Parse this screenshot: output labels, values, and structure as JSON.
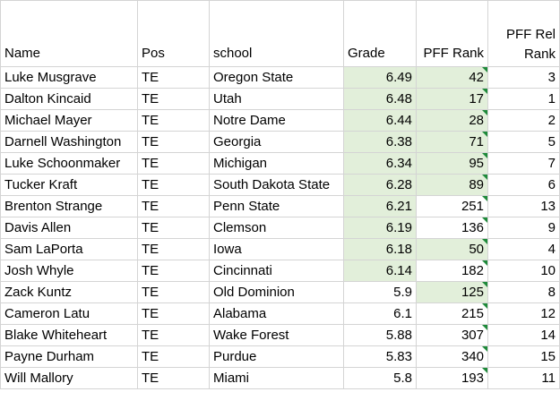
{
  "headers": {
    "name": "Name",
    "pos": "Pos",
    "school": "school",
    "grade": "Grade",
    "pff_rank": "PFF Rank",
    "pff_rel_rank_line1": "PFF Rel",
    "pff_rel_rank_line2": "Rank"
  },
  "rows": [
    {
      "name": "Luke Musgrave",
      "pos": "TE",
      "school": "Oregon State",
      "grade": "6.49",
      "pff_rank": "42",
      "rel_rank": "3"
    },
    {
      "name": "Dalton Kincaid",
      "pos": "TE",
      "school": "Utah",
      "grade": "6.48",
      "pff_rank": "17",
      "rel_rank": "1"
    },
    {
      "name": "Michael Mayer",
      "pos": "TE",
      "school": "Notre Dame",
      "grade": "6.44",
      "pff_rank": "28",
      "rel_rank": "2"
    },
    {
      "name": "Darnell Washington",
      "pos": "TE",
      "school": "Georgia",
      "grade": "6.38",
      "pff_rank": "71",
      "rel_rank": "5"
    },
    {
      "name": "Luke Schoonmaker",
      "pos": "TE",
      "school": "Michigan",
      "grade": "6.34",
      "pff_rank": "95",
      "rel_rank": "7"
    },
    {
      "name": "Tucker Kraft",
      "pos": "TE",
      "school": "South Dakota State",
      "grade": "6.28",
      "pff_rank": "89",
      "rel_rank": "6"
    },
    {
      "name": "Brenton Strange",
      "pos": "TE",
      "school": "Penn State",
      "grade": "6.21",
      "pff_rank": "251",
      "rel_rank": "13"
    },
    {
      "name": "Davis Allen",
      "pos": "TE",
      "school": "Clemson",
      "grade": "6.19",
      "pff_rank": "136",
      "rel_rank": "9"
    },
    {
      "name": "Sam LaPorta",
      "pos": "TE",
      "school": "Iowa",
      "grade": "6.18",
      "pff_rank": "50",
      "rel_rank": "4"
    },
    {
      "name": "Josh Whyle",
      "pos": "TE",
      "school": "Cincinnati",
      "grade": "6.14",
      "pff_rank": "182",
      "rel_rank": "10"
    },
    {
      "name": "Zack Kuntz",
      "pos": "TE",
      "school": "Old Dominion",
      "grade": "5.9",
      "pff_rank": "125",
      "rel_rank": "8"
    },
    {
      "name": "Cameron Latu",
      "pos": "TE",
      "school": "Alabama",
      "grade": "6.1",
      "pff_rank": "215",
      "rel_rank": "12"
    },
    {
      "name": "Blake Whiteheart",
      "pos": "TE",
      "school": "Wake Forest",
      "grade": "5.88",
      "pff_rank": "307",
      "rel_rank": "14"
    },
    {
      "name": "Payne Durham",
      "pos": "TE",
      "school": "Purdue",
      "grade": "5.83",
      "pff_rank": "340",
      "rel_rank": "15"
    },
    {
      "name": "Will Mallory",
      "pos": "TE",
      "school": "Miami",
      "grade": "5.8",
      "pff_rank": "193",
      "rel_rank": "11"
    }
  ],
  "highlight": {
    "grade_rows": [
      0,
      1,
      2,
      3,
      4,
      5,
      6,
      7,
      8,
      9
    ],
    "pff_rank_rows": [
      0,
      1,
      2,
      3,
      4,
      5,
      8,
      10
    ],
    "color": "#e2efda",
    "note_marker_color": "#1e8a3a"
  }
}
